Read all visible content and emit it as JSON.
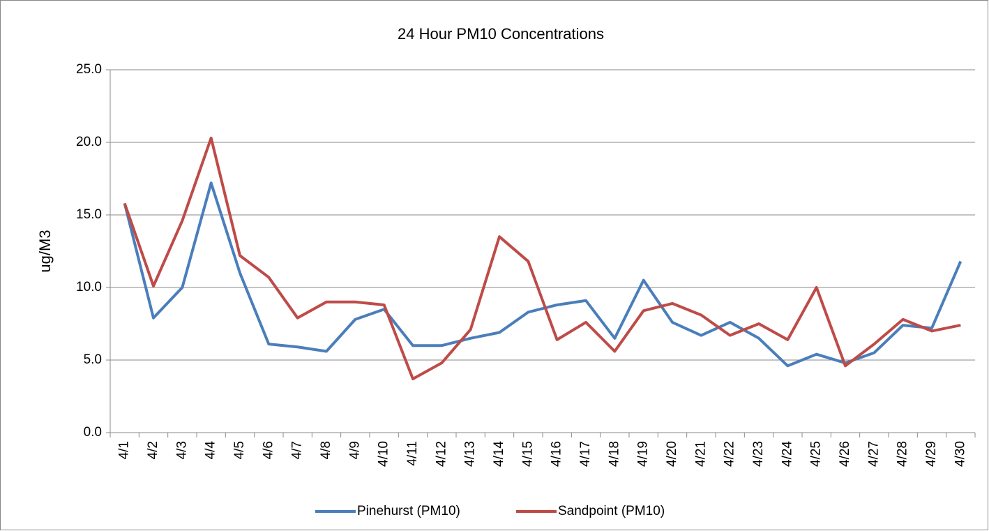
{
  "chart_data": {
    "type": "line",
    "title": "24 Hour PM10 Concentrations",
    "y_label": "ug/M3",
    "categories": [
      "4/1",
      "4/2",
      "4/3",
      "4/4",
      "4/5",
      "4/6",
      "4/7",
      "4/8",
      "4/9",
      "4/10",
      "4/11",
      "4/12",
      "4/13",
      "4/14",
      "4/15",
      "4/16",
      "4/17",
      "4/18",
      "4/19",
      "4/20",
      "4/21",
      "4/22",
      "4/23",
      "4/24",
      "4/25",
      "4/26",
      "4/27",
      "4/28",
      "4/29",
      "4/30"
    ],
    "series": [
      {
        "name": "Pinehurst (PM10)",
        "color": "#4a7ebb",
        "values": [
          15.8,
          7.9,
          10.0,
          17.2,
          11.0,
          6.1,
          5.9,
          5.6,
          7.8,
          8.5,
          6.0,
          6.0,
          6.5,
          6.9,
          8.3,
          8.8,
          9.1,
          6.5,
          10.5,
          7.6,
          6.7,
          7.6,
          6.5,
          4.6,
          5.4,
          4.8,
          5.5,
          7.4,
          7.2,
          11.8
        ]
      },
      {
        "name": "Sandpoint (PM10)",
        "color": "#be4b48",
        "values": [
          15.8,
          10.1,
          14.6,
          20.3,
          12.2,
          10.7,
          7.9,
          9.0,
          9.0,
          8.8,
          3.7,
          4.8,
          7.1,
          13.5,
          11.8,
          6.4,
          7.6,
          5.6,
          8.4,
          8.9,
          8.1,
          6.7,
          7.5,
          6.4,
          10.0,
          4.6,
          6.1,
          7.8,
          7.0,
          7.4
        ]
      }
    ],
    "ylim": [
      0,
      25
    ],
    "yticks": [
      {
        "value": 0,
        "label": "0.0"
      },
      {
        "value": 5,
        "label": "5.0"
      },
      {
        "value": 10,
        "label": "10.0"
      },
      {
        "value": 15,
        "label": "15.0"
      },
      {
        "value": 20,
        "label": "20.0"
      },
      {
        "value": 25,
        "label": "25.0"
      }
    ],
    "grid": true,
    "legend": "bottom"
  }
}
